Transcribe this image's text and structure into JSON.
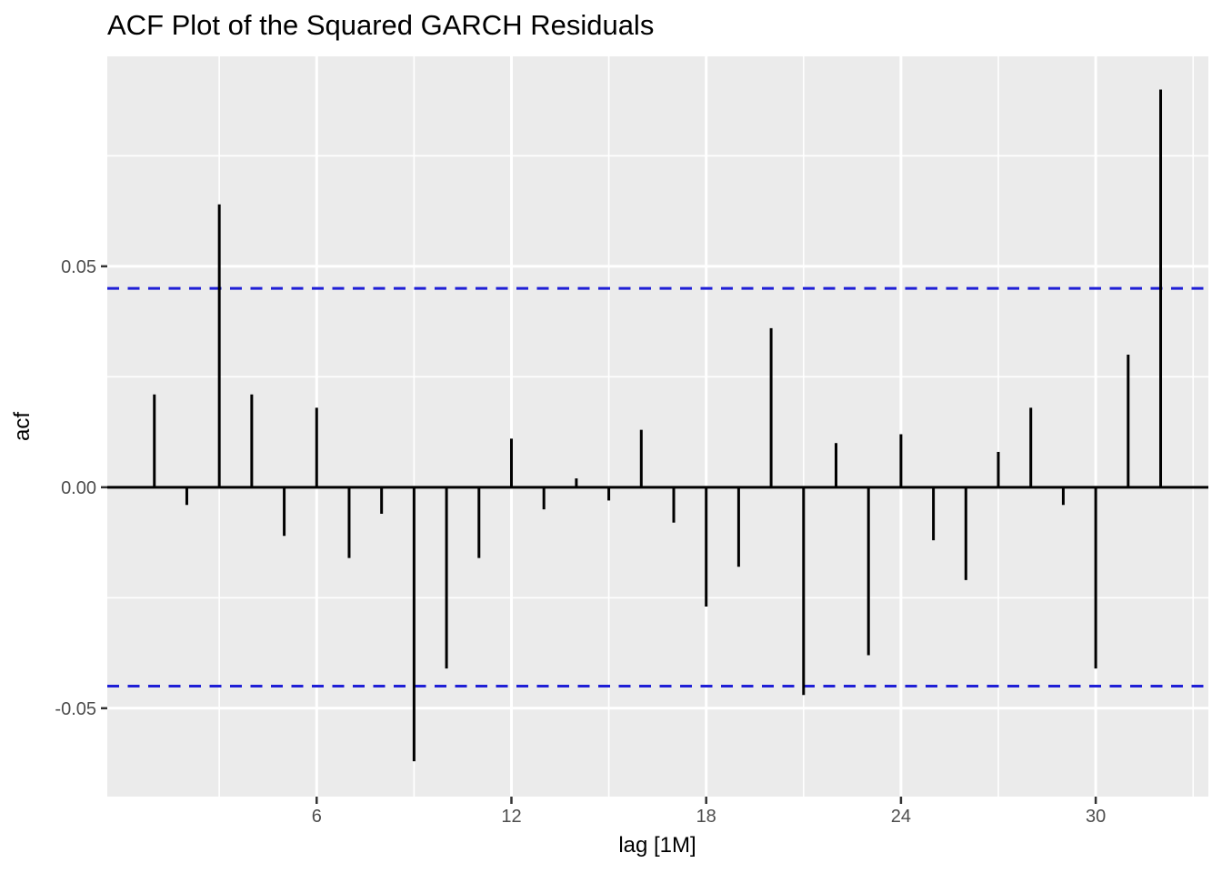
{
  "chart_data": {
    "type": "bar",
    "subtype": "acf-lollipop",
    "title": "ACF Plot of the Squared GARCH Residuals",
    "xlabel": "lag [1M]",
    "ylabel": "acf",
    "x": [
      1,
      2,
      3,
      4,
      5,
      6,
      7,
      8,
      9,
      10,
      11,
      12,
      13,
      14,
      15,
      16,
      17,
      18,
      19,
      20,
      21,
      22,
      23,
      24,
      25,
      26,
      27,
      28,
      29,
      30,
      31,
      32
    ],
    "values": [
      0.021,
      -0.004,
      0.064,
      0.021,
      -0.011,
      0.018,
      -0.016,
      -0.006,
      -0.062,
      -0.041,
      -0.016,
      0.011,
      -0.005,
      0.002,
      -0.003,
      0.013,
      -0.008,
      -0.027,
      -0.018,
      0.036,
      -0.047,
      0.01,
      -0.038,
      0.012,
      -0.012,
      -0.021,
      0.008,
      0.018,
      -0.004,
      -0.041,
      0.03,
      0.09
    ],
    "confidence_bounds": {
      "upper": 0.045,
      "lower": -0.045,
      "line_style": "dashed"
    },
    "x_ticks": [
      {
        "value": 6,
        "label": "6"
      },
      {
        "value": 12,
        "label": "12"
      },
      {
        "value": 18,
        "label": "18"
      },
      {
        "value": 24,
        "label": "24"
      },
      {
        "value": 30,
        "label": "30"
      }
    ],
    "y_ticks": [
      {
        "value": 0.05,
        "label": "0.05"
      },
      {
        "value": 0.0,
        "label": "0.00"
      },
      {
        "value": -0.05,
        "label": "-0.05"
      }
    ],
    "x_minor_gridlines": [
      3,
      9,
      15,
      21,
      27,
      33
    ],
    "y_minor_gridlines": [
      0.075,
      0.025,
      -0.025
    ],
    "xlim": [
      -0.45,
      33.47
    ],
    "ylim": [
      -0.07,
      0.0975
    ],
    "grid": true,
    "legend": false,
    "colors": {
      "panel_background": "#EBEBEB",
      "gridline": "#FFFFFF",
      "bar": "#000000",
      "zero_line": "#000000",
      "confidence_line": "#1F1FD6",
      "tick_mark": "#333333",
      "tick_label": "#4D4D4D",
      "text": "#000000"
    }
  }
}
